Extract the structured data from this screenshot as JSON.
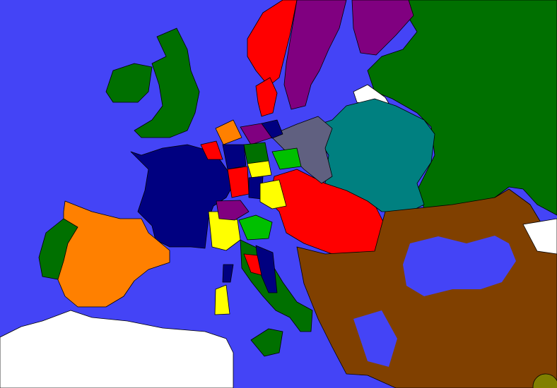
{
  "map": {
    "colors": {
      "sea": "#4444f6",
      "unclaimed": "#ffffff",
      "green": "#007000",
      "red": "#ff0000",
      "purple": "#800080",
      "navy": "#000080",
      "orange": "#ff8000",
      "teal": "#008080",
      "brown": "#804000",
      "yellow": "#ffff00",
      "slate": "#606080",
      "lime": "#00c000",
      "olive": "#808000"
    }
  }
}
